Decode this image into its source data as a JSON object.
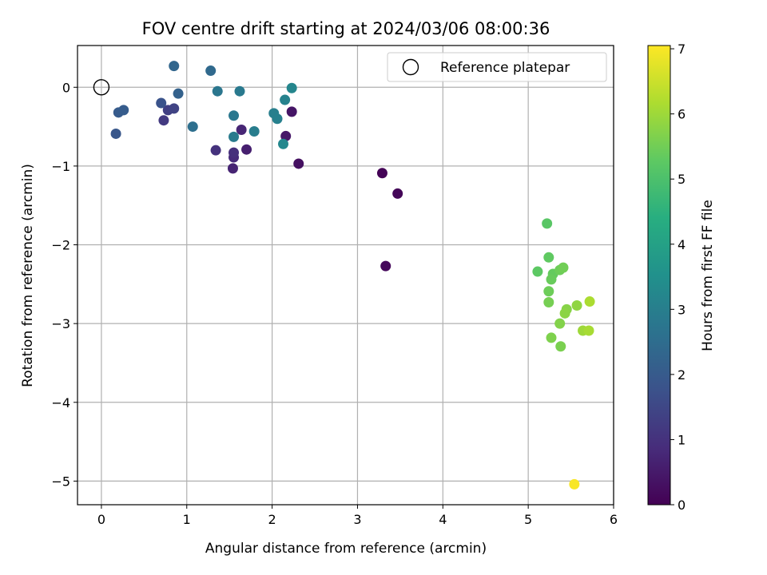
{
  "chart_data": {
    "type": "scatter",
    "title": "FOV centre drift starting at 2024/03/06 08:00:36",
    "xlabel": "Angular distance from reference (arcmin)",
    "ylabel": "Rotation from reference (arcmin)",
    "xlim": [
      -0.28,
      6.0
    ],
    "ylim": [
      -5.3,
      0.53
    ],
    "xticks": [
      0,
      1,
      2,
      3,
      4,
      5,
      6
    ],
    "yticks": [
      0,
      -1,
      -2,
      -3,
      -4,
      -5
    ],
    "grid": true,
    "colormap": "viridis",
    "colorbar": {
      "label": "Hours from first FF file",
      "range": [
        0,
        7.05
      ],
      "ticks": [
        0,
        1,
        2,
        3,
        4,
        5,
        6,
        7
      ]
    },
    "legend": {
      "placement": "top-right",
      "entries": [
        {
          "label": "Reference platepar",
          "marker": "open-circle"
        }
      ]
    },
    "reference_point": {
      "x": 0,
      "y": 0
    },
    "points": [
      {
        "x": 3.29,
        "y": -1.09,
        "hours": 0.05
      },
      {
        "x": 3.47,
        "y": -1.35,
        "hours": 0.1
      },
      {
        "x": 3.33,
        "y": -2.27,
        "hours": 0.15
      },
      {
        "x": 2.31,
        "y": -0.97,
        "hours": 0.3
      },
      {
        "x": 2.23,
        "y": -0.31,
        "hours": 0.4
      },
      {
        "x": 2.16,
        "y": -0.62,
        "hours": 0.45
      },
      {
        "x": 1.7,
        "y": -0.79,
        "hours": 0.6
      },
      {
        "x": 1.54,
        "y": -1.03,
        "hours": 0.7
      },
      {
        "x": 1.64,
        "y": -0.54,
        "hours": 0.75
      },
      {
        "x": 1.55,
        "y": -0.89,
        "hours": 0.85
      },
      {
        "x": 1.55,
        "y": -0.83,
        "hours": 0.95
      },
      {
        "x": 1.34,
        "y": -0.8,
        "hours": 1.0
      },
      {
        "x": 0.73,
        "y": -0.42,
        "hours": 1.2
      },
      {
        "x": 0.78,
        "y": -0.29,
        "hours": 1.3
      },
      {
        "x": 0.85,
        "y": -0.27,
        "hours": 1.4
      },
      {
        "x": 0.7,
        "y": -0.2,
        "hours": 1.8
      },
      {
        "x": 0.17,
        "y": -0.59,
        "hours": 1.9
      },
      {
        "x": 0.2,
        "y": -0.32,
        "hours": 2.0
      },
      {
        "x": 0.26,
        "y": -0.29,
        "hours": 2.05
      },
      {
        "x": 0.9,
        "y": -0.08,
        "hours": 2.2
      },
      {
        "x": 0.85,
        "y": 0.27,
        "hours": 2.3
      },
      {
        "x": 1.28,
        "y": 0.21,
        "hours": 2.4
      },
      {
        "x": 1.07,
        "y": -0.5,
        "hours": 2.55
      },
      {
        "x": 1.36,
        "y": -0.05,
        "hours": 2.75
      },
      {
        "x": 1.55,
        "y": -0.36,
        "hours": 2.8
      },
      {
        "x": 1.62,
        "y": -0.05,
        "hours": 2.85
      },
      {
        "x": 1.55,
        "y": -0.63,
        "hours": 2.9
      },
      {
        "x": 1.79,
        "y": -0.56,
        "hours": 2.95
      },
      {
        "x": 2.02,
        "y": -0.33,
        "hours": 3.0
      },
      {
        "x": 2.06,
        "y": -0.4,
        "hours": 3.05
      },
      {
        "x": 2.15,
        "y": -0.16,
        "hours": 3.1
      },
      {
        "x": 2.23,
        "y": -0.01,
        "hours": 3.2
      },
      {
        "x": 2.13,
        "y": -0.72,
        "hours": 3.25
      },
      {
        "x": 5.22,
        "y": -1.73,
        "hours": 5.2
      },
      {
        "x": 5.11,
        "y": -2.34,
        "hours": 5.25
      },
      {
        "x": 5.24,
        "y": -2.16,
        "hours": 5.3
      },
      {
        "x": 5.29,
        "y": -2.37,
        "hours": 5.35
      },
      {
        "x": 5.27,
        "y": -2.44,
        "hours": 5.4
      },
      {
        "x": 5.24,
        "y": -2.59,
        "hours": 5.45
      },
      {
        "x": 5.37,
        "y": -2.32,
        "hours": 5.45
      },
      {
        "x": 5.41,
        "y": -2.29,
        "hours": 5.5
      },
      {
        "x": 5.24,
        "y": -2.73,
        "hours": 5.55
      },
      {
        "x": 5.38,
        "y": -3.29,
        "hours": 5.6
      },
      {
        "x": 5.27,
        "y": -3.18,
        "hours": 5.65
      },
      {
        "x": 5.37,
        "y": -3.0,
        "hours": 5.7
      },
      {
        "x": 5.45,
        "y": -2.82,
        "hours": 5.75
      },
      {
        "x": 5.43,
        "y": -2.87,
        "hours": 5.8
      },
      {
        "x": 5.57,
        "y": -2.77,
        "hours": 5.85
      },
      {
        "x": 5.64,
        "y": -3.09,
        "hours": 6.0
      },
      {
        "x": 5.71,
        "y": -3.09,
        "hours": 6.1
      },
      {
        "x": 5.72,
        "y": -2.72,
        "hours": 6.15
      },
      {
        "x": 5.54,
        "y": -5.04,
        "hours": 7.0
      }
    ]
  }
}
